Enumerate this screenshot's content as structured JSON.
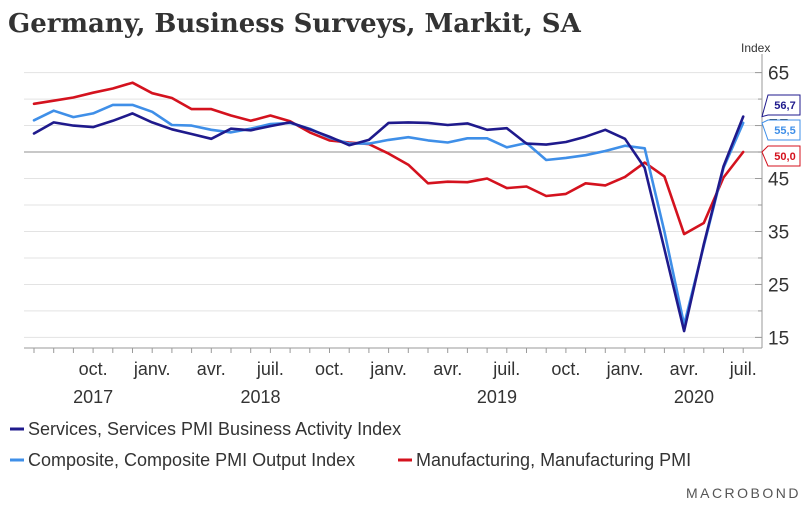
{
  "chart_data": {
    "type": "line",
    "title": "Germany, Business Surveys, Markit, SA",
    "ylabel": "Index",
    "ylim": [
      13,
      67
    ],
    "yticks": [
      15,
      25,
      35,
      45,
      55,
      65
    ],
    "reference_line": 50,
    "x_ticks": [
      {
        "label": "oct.",
        "index": 3
      },
      {
        "label": "janv.",
        "index": 6
      },
      {
        "label": "avr.",
        "index": 9
      },
      {
        "label": "juil.",
        "index": 12
      },
      {
        "label": "oct.",
        "index": 15
      },
      {
        "label": "janv.",
        "index": 18
      },
      {
        "label": "avr.",
        "index": 21
      },
      {
        "label": "juil.",
        "index": 24
      },
      {
        "label": "oct.",
        "index": 27
      },
      {
        "label": "janv.",
        "index": 30
      },
      {
        "label": "avr.",
        "index": 33
      },
      {
        "label": "juil.",
        "index": 36
      }
    ],
    "years": [
      {
        "label": "2017",
        "index": 3
      },
      {
        "label": "2018",
        "index": 11.5
      },
      {
        "label": "2019",
        "index": 23.5
      },
      {
        "label": "2020",
        "index": 33.5
      }
    ],
    "x": [
      "2017-07",
      "2017-08",
      "2017-09",
      "2017-10",
      "2017-11",
      "2017-12",
      "2018-01",
      "2018-02",
      "2018-03",
      "2018-04",
      "2018-05",
      "2018-06",
      "2018-07",
      "2018-08",
      "2018-09",
      "2018-10",
      "2018-11",
      "2018-12",
      "2019-01",
      "2019-02",
      "2019-03",
      "2019-04",
      "2019-05",
      "2019-06",
      "2019-07",
      "2019-08",
      "2019-09",
      "2019-10",
      "2019-11",
      "2019-12",
      "2020-01",
      "2020-02",
      "2020-03",
      "2020-04",
      "2020-05",
      "2020-06",
      "2020-07"
    ],
    "series": [
      {
        "name": "Services, Services PMI Business Activity Index",
        "color": "#1f1a8c",
        "values": [
          53.5,
          55.6,
          55.0,
          54.7,
          55.9,
          57.3,
          55.6,
          54.3,
          53.4,
          52.5,
          54.4,
          54.1,
          54.9,
          55.6,
          54.3,
          52.9,
          51.3,
          52.3,
          55.5,
          55.6,
          55.5,
          55.1,
          55.4,
          54.2,
          54.5,
          51.6,
          51.4,
          51.9,
          52.9,
          54.2,
          52.5,
          47.0,
          31.7,
          16.2,
          32.6,
          47.3,
          56.7
        ]
      },
      {
        "name": "Composite, Composite PMI Output Index",
        "color": "#3f8fe8",
        "values": [
          56.0,
          57.8,
          56.6,
          57.3,
          58.9,
          58.9,
          57.6,
          55.1,
          55.0,
          54.2,
          53.7,
          54.4,
          55.3,
          55.5,
          54.4,
          52.7,
          51.6,
          51.6,
          52.3,
          52.8,
          52.2,
          51.8,
          52.6,
          52.6,
          50.9,
          51.7,
          48.5,
          48.9,
          49.4,
          50.2,
          51.2,
          50.7,
          35.0,
          17.4,
          32.3,
          47.0,
          55.5
        ]
      },
      {
        "name": "Manufacturing, Manufacturing PMI",
        "color": "#d4121e",
        "values": [
          59.1,
          59.7,
          60.3,
          61.2,
          62.0,
          63.1,
          61.1,
          60.2,
          58.1,
          58.1,
          56.9,
          55.9,
          56.9,
          55.8,
          53.7,
          52.2,
          51.8,
          51.5,
          49.7,
          47.6,
          44.1,
          44.4,
          44.3,
          45.0,
          43.2,
          43.5,
          41.7,
          42.1,
          44.1,
          43.7,
          45.3,
          48.0,
          45.4,
          34.5,
          36.6,
          45.2,
          50.0
        ]
      }
    ],
    "end_labels": [
      "56,7",
      "55,5",
      "50,0"
    ],
    "legend_placement": "bottom",
    "grid": true
  },
  "footer": {
    "brand": "MACROBOND"
  }
}
